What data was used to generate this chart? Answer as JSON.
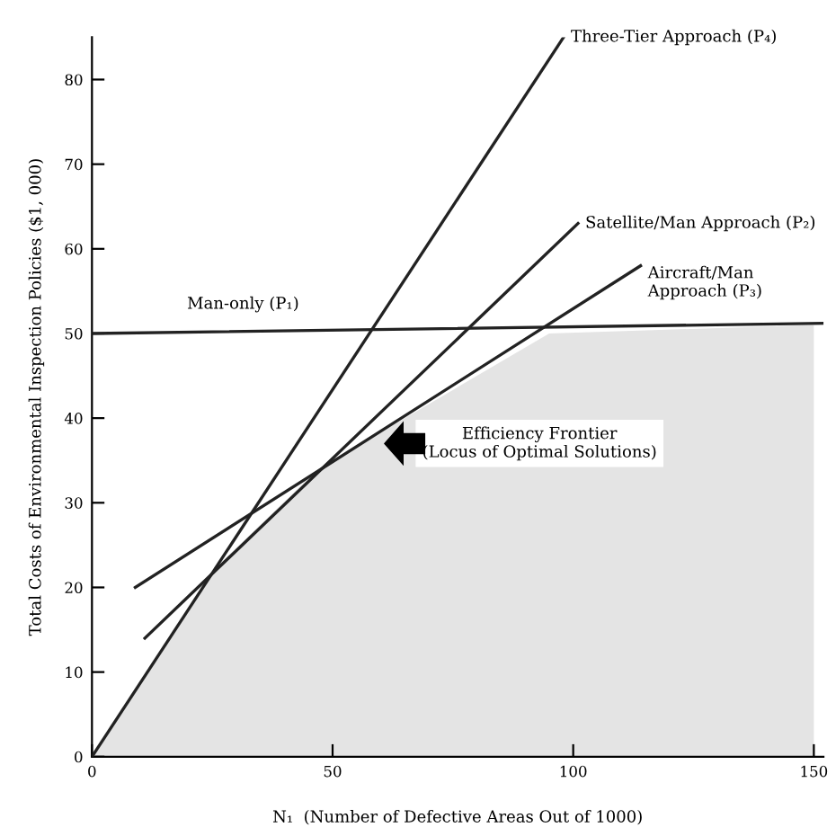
{
  "chart_data": {
    "type": "line",
    "xlabel": "N₁  (Number of Defective Areas Out of 1000)",
    "ylabel": "Total Costs of Environmental Inspection Policies ($1, 000)",
    "xlim": [
      0,
      152
    ],
    "ylim": [
      0,
      85
    ],
    "xticks": [
      0,
      50,
      100,
      150
    ],
    "yticks": [
      0,
      10,
      20,
      30,
      40,
      50,
      60,
      70,
      80
    ],
    "grid": false,
    "legend": false,
    "marker": "none",
    "line_style": "solid",
    "series": [
      {
        "type": "area",
        "color": "#e4e4e4",
        "x": [
          0,
          26,
          47,
          95,
          150
        ],
        "values": [
          0,
          22.5,
          34,
          50,
          51
        ]
      },
      {
        "name": "Man-only (P₁)",
        "color": "#222222",
        "x": [
          0,
          152
        ],
        "values": [
          50,
          51.2
        ]
      },
      {
        "name": "Three-Tier Approach (P₄)",
        "color": "#222222",
        "x": [
          0,
          98
        ],
        "values": [
          0,
          85
        ]
      },
      {
        "name": "Satellite/Man Approach (P₂)",
        "color": "#222222",
        "x": [
          11,
          101
        ],
        "values": [
          14,
          63
        ]
      },
      {
        "name": "Aircraft/Man\nApproach (P₃)",
        "color": "#222222",
        "x": [
          9,
          114
        ],
        "values": [
          20,
          58
        ]
      }
    ],
    "annotations": [
      {
        "text": "Efficiency Frontier\n(Locus of Optimal Solutions)",
        "x": 60,
        "y": 37
      }
    ]
  }
}
